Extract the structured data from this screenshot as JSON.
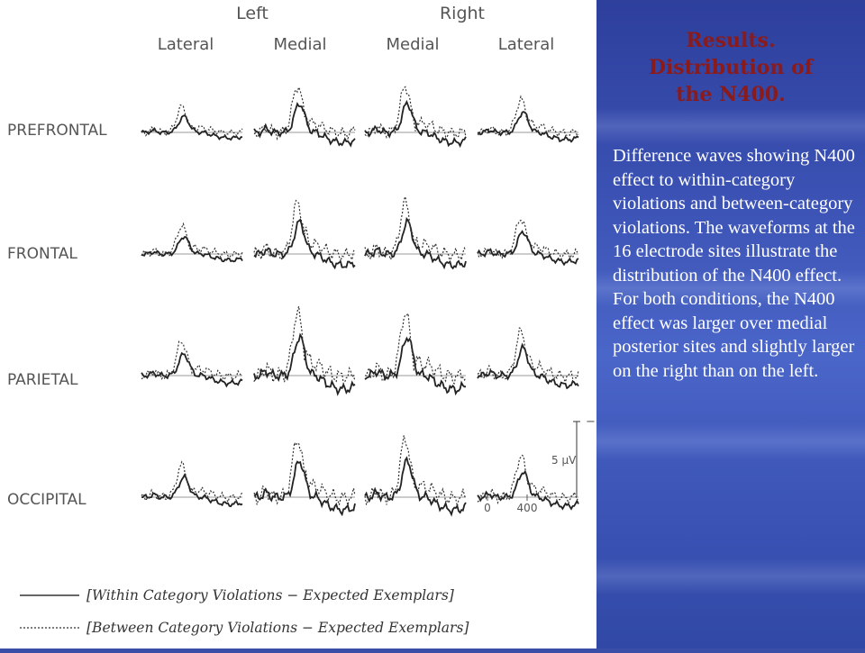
{
  "figure": {
    "hemispheres": [
      "Left",
      "Right"
    ],
    "columns": [
      "Lateral",
      "Medial",
      "Medial",
      "Lateral"
    ],
    "rows": [
      "PREFRONTAL",
      "FRONTAL",
      "PARIETAL",
      "OCCIPITAL"
    ],
    "scale_label": "5 µV",
    "scale_minus": "−",
    "axis_ticks": [
      "0",
      "400"
    ],
    "legend": [
      {
        "text": "[Within Category Violations − Expected Exemplars]",
        "line_style": "solid"
      },
      {
        "text": "[Between Category Violations − Expected Exemplars]",
        "line_style": "dotted"
      }
    ]
  },
  "slide": {
    "title_lines": [
      "Results.",
      "Distribution of",
      "the N400."
    ],
    "body": "Difference waves showing N400 effect to within-category violations and between-category violations. The waveforms at the 16 electrode sites illustrate the distribution of the N400 effect. For both conditions, the N400 effect was larger over medial posterior sites and slightly larger on the right than on the left.",
    "title_color": "#8b1a1a",
    "background_color": "#3a4ea8"
  }
}
